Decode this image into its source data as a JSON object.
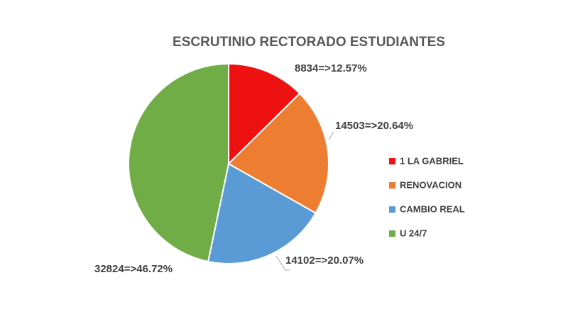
{
  "chart_data": {
    "type": "pie",
    "title": "ESCRUTINIO RECTORADO ESTUDIANTES",
    "categories": [
      "1 LA GABRIEL",
      "RENOVACION",
      "CAMBIO REAL",
      "U 24/7"
    ],
    "values": [
      8834,
      14503,
      14102,
      32824
    ],
    "value_labels": [
      "8834=>12.57%",
      "14503=>20.64%",
      "14102=>20.07%",
      "32824=>46.72%"
    ],
    "colors": [
      "#ee1111",
      "#ed7d31",
      "#5b9bd5",
      "#70ad47"
    ],
    "legend": "right"
  }
}
